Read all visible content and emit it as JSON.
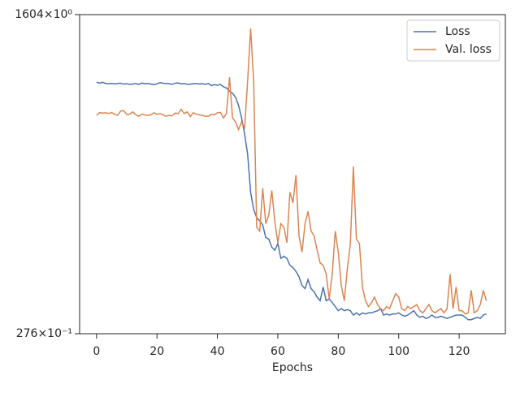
{
  "chart_data": {
    "type": "line",
    "xlabel": "Epochs",
    "yscale": "log",
    "legend": "upper right",
    "x": [
      0,
      1,
      2,
      3,
      4,
      5,
      6,
      7,
      8,
      9,
      10,
      11,
      12,
      13,
      14,
      15,
      16,
      17,
      18,
      19,
      20,
      21,
      22,
      23,
      24,
      25,
      26,
      27,
      28,
      29,
      30,
      31,
      32,
      33,
      34,
      35,
      36,
      37,
      38,
      39,
      40,
      41,
      42,
      43,
      44,
      45,
      46,
      47,
      48,
      49,
      50,
      51,
      52,
      53,
      54,
      55,
      56,
      57,
      58,
      59,
      60,
      61,
      62,
      63,
      64,
      65,
      66,
      67,
      68,
      69,
      70,
      71,
      72,
      73,
      74,
      75,
      76,
      77,
      78,
      79,
      80,
      81,
      82,
      83,
      84,
      85,
      86,
      87,
      88,
      89,
      90,
      91,
      92,
      93,
      94,
      95,
      96,
      97,
      98,
      99,
      100,
      101,
      102,
      103,
      104,
      105,
      106,
      107,
      108,
      109,
      110,
      111,
      112,
      113,
      114,
      115,
      116,
      117,
      118,
      119,
      120,
      121,
      122,
      123,
      124,
      125,
      126,
      127,
      128,
      129
    ],
    "series": [
      {
        "name": "Loss",
        "color": "#4c72b0",
        "values": [
          680,
          670,
          678,
          668,
          665,
          668,
          664,
          668,
          670,
          662,
          665,
          660,
          663,
          668,
          660,
          672,
          665,
          668,
          663,
          658,
          665,
          675,
          670,
          668,
          665,
          660,
          670,
          672,
          664,
          668,
          660,
          662,
          665,
          668,
          663,
          666,
          660,
          668,
          650,
          658,
          652,
          660,
          640,
          630,
          605,
          590,
          560,
          504,
          431,
          351,
          271,
          167,
          134,
          121,
          116,
          110,
          94,
          92,
          83,
          80,
          87,
          72,
          74,
          72,
          66,
          64,
          61,
          57,
          51,
          49,
          55,
          49,
          47,
          44,
          42,
          50,
          42,
          43,
          41,
          39,
          37,
          38,
          37,
          37.5,
          37,
          35,
          36,
          35,
          36,
          35.5,
          36,
          36,
          36.5,
          37,
          38,
          35,
          35.5,
          35,
          35.5,
          35.5,
          36,
          35,
          34.5,
          35,
          36,
          37,
          35,
          34,
          34.5,
          33.5,
          34,
          35,
          34,
          34,
          34.5,
          34,
          33.5,
          34,
          34.5,
          35,
          35,
          35,
          34,
          33,
          33,
          33.5,
          34,
          33.5,
          35,
          35.5
        ]
      },
      {
        "name": "Val. loss",
        "color": "#dd8452",
        "values": [
          445,
          460,
          458,
          460,
          455,
          462,
          450,
          445,
          470,
          472,
          450,
          452,
          465,
          448,
          440,
          452,
          447,
          445,
          448,
          460,
          450,
          455,
          448,
          440,
          445,
          442,
          458,
          455,
          480,
          455,
          465,
          438,
          460,
          452,
          448,
          445,
          440,
          440,
          450,
          448,
          460,
          462,
          430,
          455,
          723,
          431,
          409,
          371,
          409,
          380,
          687,
          1344,
          687,
          107,
          102,
          176,
          112,
          125,
          171,
          115,
          88,
          112,
          107,
          88,
          167,
          146,
          208,
          96,
          78,
          112,
          131,
          102,
          96,
          80,
          68,
          66,
          59,
          43,
          59,
          102,
          78,
          51,
          42,
          63,
          87,
          232,
          92,
          87,
          50,
          42,
          39,
          41,
          44,
          40,
          38,
          37,
          39,
          38,
          42,
          46,
          44,
          38,
          37,
          39,
          38,
          39,
          40,
          37,
          36,
          38,
          40,
          37,
          36,
          37,
          38,
          36,
          38,
          59,
          38,
          50,
          37,
          37,
          35.5,
          36,
          48,
          36,
          37,
          40,
          48,
          42
        ]
      }
    ],
    "xlim": [
      -5.6,
      135.3
    ],
    "xticks": [
      0,
      20,
      40,
      60,
      80,
      100,
      120
    ],
    "ylim": [
      27.6,
      1604
    ],
    "yticks": [
      {
        "value": 27.6,
        "label": "276×10⁻¹"
      },
      {
        "value": 1604,
        "label": "1604×10⁰"
      }
    ]
  }
}
